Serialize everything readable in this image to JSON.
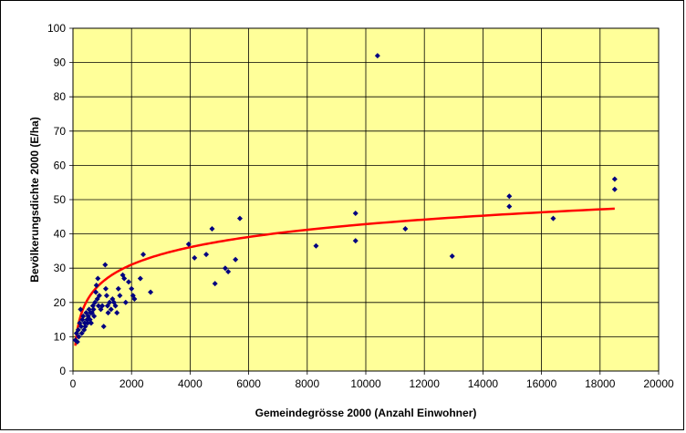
{
  "chart_data": {
    "type": "scatter",
    "title": "",
    "xlabel": "Gemeindegrösse 2000 (Anzahl Einwohner)",
    "ylabel": "Bevölkerungsdichte 2000 (E/ha)",
    "xlim": [
      0,
      20000
    ],
    "ylim": [
      0,
      100
    ],
    "x_ticks": [
      0,
      2000,
      4000,
      6000,
      8000,
      10000,
      12000,
      14000,
      16000,
      18000,
      20000
    ],
    "y_ticks": [
      0,
      10,
      20,
      30,
      40,
      50,
      60,
      70,
      80,
      90,
      100
    ],
    "grid": true,
    "plot_background": "#ffff99",
    "grid_color": "#000000",
    "marker_color": "#000080",
    "trendline_color": "#ff0000",
    "series": [
      {
        "points": [
          [
            80,
            9
          ],
          [
            120,
            11
          ],
          [
            150,
            8.5
          ],
          [
            180,
            12
          ],
          [
            200,
            10
          ],
          [
            230,
            14
          ],
          [
            260,
            18
          ],
          [
            280,
            13
          ],
          [
            300,
            11
          ],
          [
            320,
            15
          ],
          [
            350,
            16
          ],
          [
            380,
            12
          ],
          [
            400,
            14
          ],
          [
            420,
            13
          ],
          [
            450,
            17
          ],
          [
            480,
            15
          ],
          [
            500,
            14
          ],
          [
            520,
            16
          ],
          [
            550,
            18
          ],
          [
            580,
            15
          ],
          [
            600,
            17
          ],
          [
            620,
            14
          ],
          [
            650,
            17
          ],
          [
            680,
            19
          ],
          [
            700,
            18
          ],
          [
            720,
            16
          ],
          [
            750,
            20
          ],
          [
            780,
            23
          ],
          [
            800,
            25
          ],
          [
            830,
            21
          ],
          [
            850,
            27
          ],
          [
            870,
            19
          ],
          [
            900,
            22
          ],
          [
            950,
            18
          ],
          [
            1000,
            19
          ],
          [
            1050,
            13
          ],
          [
            1100,
            31
          ],
          [
            1120,
            24
          ],
          [
            1150,
            22
          ],
          [
            1180,
            19
          ],
          [
            1200,
            17
          ],
          [
            1250,
            20
          ],
          [
            1300,
            18
          ],
          [
            1350,
            21
          ],
          [
            1400,
            20
          ],
          [
            1450,
            19
          ],
          [
            1500,
            17
          ],
          [
            1550,
            24
          ],
          [
            1600,
            22
          ],
          [
            1700,
            28
          ],
          [
            1750,
            27
          ],
          [
            1800,
            20
          ],
          [
            1900,
            26
          ],
          [
            2000,
            24
          ],
          [
            2050,
            22
          ],
          [
            2100,
            21
          ],
          [
            2300,
            27
          ],
          [
            2400,
            34
          ],
          [
            2650,
            23
          ],
          [
            3950,
            37
          ],
          [
            4150,
            33
          ],
          [
            4550,
            34
          ],
          [
            4750,
            41.5
          ],
          [
            4850,
            25.5
          ],
          [
            5200,
            30
          ],
          [
            5300,
            29
          ],
          [
            5550,
            32.5
          ],
          [
            5700,
            44.5
          ],
          [
            8300,
            36.5
          ],
          [
            9650,
            46
          ],
          [
            9650,
            38
          ],
          [
            10400,
            92
          ],
          [
            11350,
            41.5
          ],
          [
            12950,
            33.5
          ],
          [
            14900,
            51
          ],
          [
            14900,
            48
          ],
          [
            16400,
            44.5
          ],
          [
            18500,
            56
          ],
          [
            18500,
            53
          ]
        ]
      }
    ],
    "trendline": {
      "type": "logarithmic",
      "a": 7.345,
      "b": -24.8,
      "x_range": [
        80,
        18500
      ]
    }
  }
}
